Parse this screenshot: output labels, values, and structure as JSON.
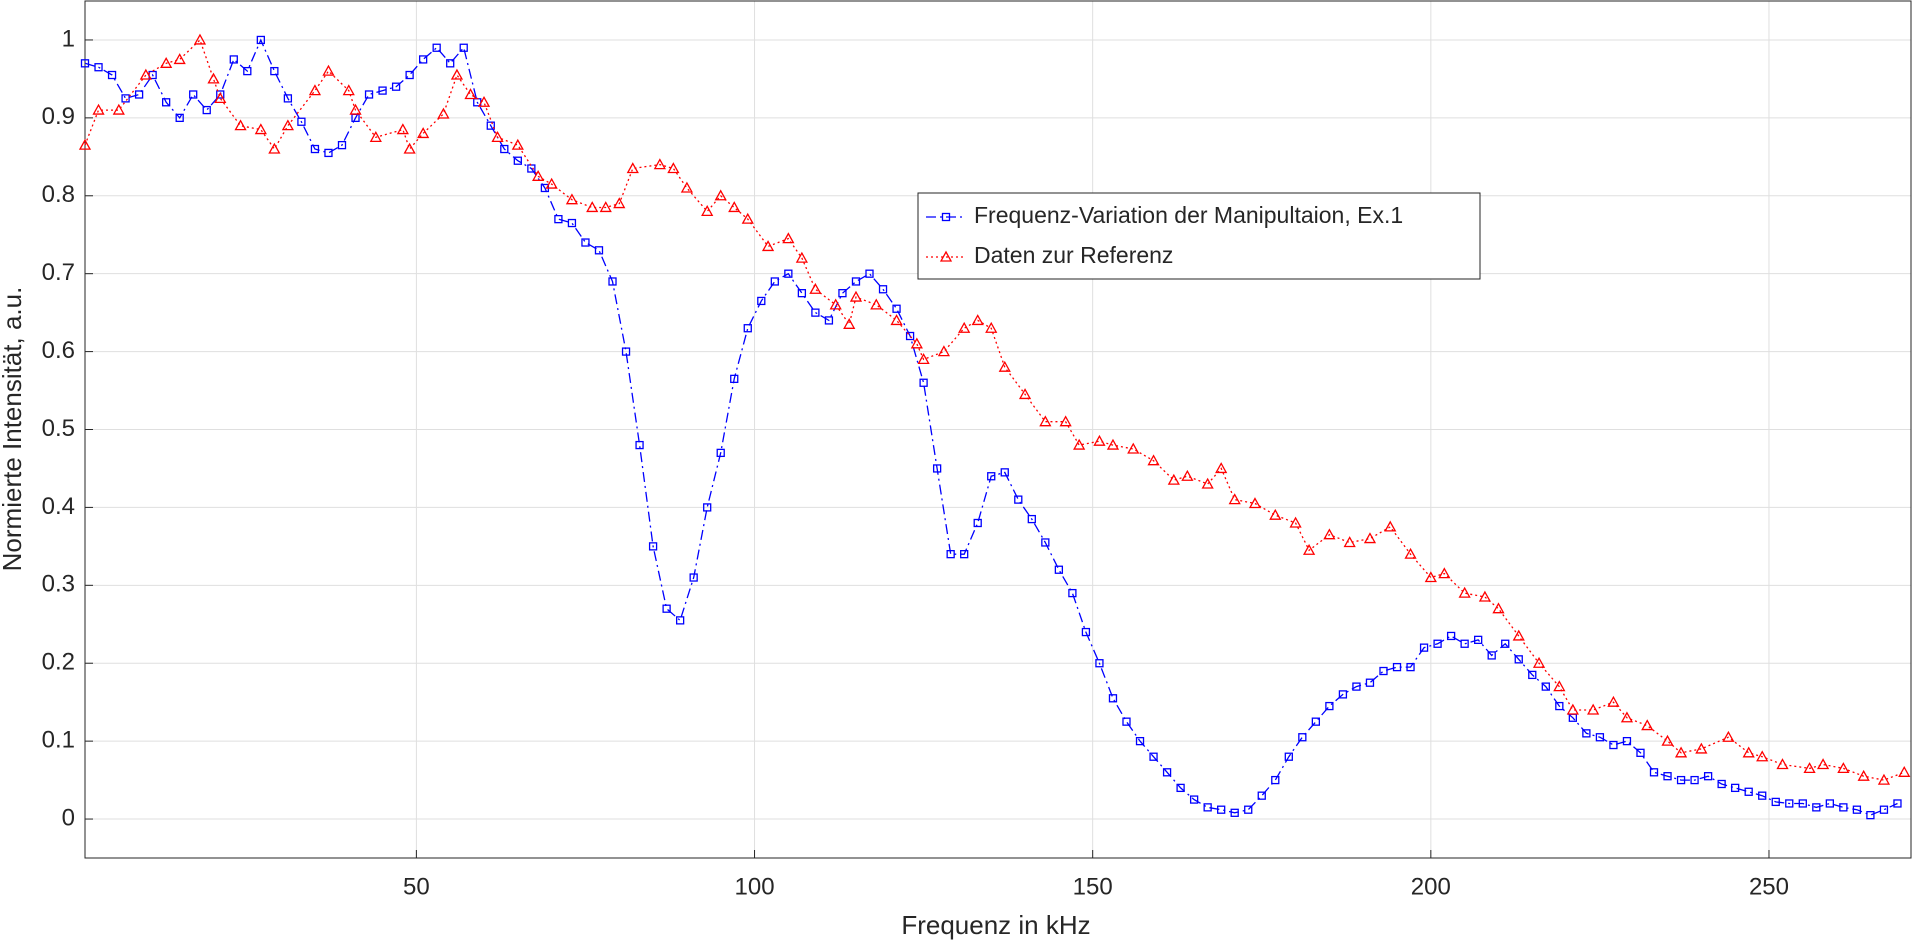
{
  "chart_data": {
    "type": "line",
    "xlabel": "Frequenz in kHz",
    "ylabel": "Normierte Intensität, a.u.",
    "xlim": [
      1,
      271
    ],
    "ylim": [
      -0.05,
      1.05
    ],
    "xticks": [
      50,
      100,
      150,
      200,
      250
    ],
    "yticks": [
      0,
      0.1,
      0.2,
      0.3,
      0.4,
      0.5,
      0.6,
      0.7,
      0.8,
      0.9,
      1
    ],
    "grid": true,
    "legend_loc": "upper center",
    "series": [
      {
        "name": "Frequenz-Variation der Manipultaion, Ex.1",
        "color": "#0000ff",
        "linestyle": "dashdot",
        "marker": "square",
        "x": [
          1,
          3,
          5,
          7,
          9,
          11,
          13,
          15,
          17,
          19,
          21,
          23,
          25,
          27,
          29,
          31,
          33,
          35,
          37,
          39,
          41,
          43,
          45,
          47,
          49,
          51,
          53,
          55,
          57,
          59,
          61,
          63,
          65,
          67,
          69,
          71,
          73,
          75,
          77,
          79,
          81,
          83,
          85,
          87,
          89,
          91,
          93,
          95,
          97,
          99,
          101,
          103,
          105,
          107,
          109,
          111,
          113,
          115,
          117,
          119,
          121,
          123,
          125,
          127,
          129,
          131,
          133,
          135,
          137,
          139,
          141,
          143,
          145,
          147,
          149,
          151,
          153,
          155,
          157,
          159,
          161,
          163,
          165,
          167,
          169,
          171,
          173,
          175,
          177,
          179,
          181,
          183,
          185,
          187,
          189,
          191,
          193,
          195,
          197,
          199,
          201,
          203,
          205,
          207,
          209,
          211,
          213,
          215,
          217,
          219,
          221,
          223,
          225,
          227,
          229,
          231,
          233,
          235,
          237,
          239,
          241,
          243,
          245,
          247,
          249,
          251,
          253,
          255,
          257,
          259,
          261,
          263,
          265,
          267,
          269
        ],
        "values": [
          0.97,
          0.965,
          0.955,
          0.925,
          0.93,
          0.955,
          0.92,
          0.9,
          0.93,
          0.91,
          0.93,
          0.975,
          0.96,
          1.0,
          0.96,
          0.925,
          0.895,
          0.86,
          0.855,
          0.865,
          0.9,
          0.93,
          0.935,
          0.94,
          0.955,
          0.975,
          0.99,
          0.97,
          0.99,
          0.92,
          0.89,
          0.86,
          0.845,
          0.835,
          0.81,
          0.77,
          0.765,
          0.74,
          0.73,
          0.69,
          0.6,
          0.48,
          0.35,
          0.27,
          0.255,
          0.31,
          0.4,
          0.47,
          0.565,
          0.63,
          0.665,
          0.69,
          0.7,
          0.675,
          0.65,
          0.64,
          0.675,
          0.69,
          0.7,
          0.68,
          0.655,
          0.62,
          0.56,
          0.45,
          0.34,
          0.34,
          0.38,
          0.44,
          0.445,
          0.41,
          0.385,
          0.355,
          0.32,
          0.29,
          0.24,
          0.2,
          0.155,
          0.125,
          0.1,
          0.08,
          0.06,
          0.04,
          0.025,
          0.015,
          0.012,
          0.008,
          0.012,
          0.03,
          0.05,
          0.08,
          0.105,
          0.125,
          0.145,
          0.16,
          0.17,
          0.175,
          0.19,
          0.195,
          0.195,
          0.22,
          0.225,
          0.235,
          0.225,
          0.23,
          0.21,
          0.225,
          0.205,
          0.185,
          0.17,
          0.145,
          0.13,
          0.11,
          0.105,
          0.095,
          0.1,
          0.085,
          0.06,
          0.055,
          0.05,
          0.05,
          0.055,
          0.045,
          0.04,
          0.035,
          0.03,
          0.022,
          0.02,
          0.02,
          0.015,
          0.02,
          0.015,
          0.012,
          0.005,
          0.012,
          0.02
        ]
      },
      {
        "name": "Daten zur Referenz",
        "color": "#ff0000",
        "linestyle": "dotted",
        "marker": "triangle",
        "x": [
          1,
          3,
          6,
          10,
          13,
          15,
          18,
          20,
          21,
          24,
          27,
          29,
          31,
          35,
          37,
          40,
          41,
          44,
          48,
          49,
          51,
          54,
          56,
          58,
          60,
          62,
          65,
          68,
          70,
          73,
          76,
          78,
          80,
          82,
          86,
          88,
          90,
          93,
          95,
          97,
          99,
          102,
          105,
          107,
          109,
          112,
          114,
          115,
          118,
          121,
          124,
          125,
          128,
          131,
          133,
          135,
          137,
          140,
          143,
          146,
          148,
          151,
          153,
          156,
          159,
          162,
          164,
          167,
          169,
          171,
          174,
          177,
          180,
          182,
          185,
          188,
          191,
          194,
          197,
          200,
          202,
          205,
          208,
          210,
          213,
          216,
          219,
          221,
          224,
          227,
          229,
          232,
          235,
          237,
          240,
          244,
          247,
          249,
          252,
          256,
          258,
          261,
          264,
          267,
          270
        ],
        "values": [
          0.865,
          0.91,
          0.91,
          0.955,
          0.97,
          0.975,
          1.0,
          0.95,
          0.925,
          0.89,
          0.885,
          0.86,
          0.89,
          0.935,
          0.96,
          0.935,
          0.91,
          0.875,
          0.885,
          0.86,
          0.88,
          0.905,
          0.955,
          0.93,
          0.92,
          0.875,
          0.865,
          0.825,
          0.815,
          0.795,
          0.785,
          0.785,
          0.79,
          0.835,
          0.84,
          0.835,
          0.81,
          0.78,
          0.8,
          0.785,
          0.77,
          0.735,
          0.745,
          0.72,
          0.68,
          0.66,
          0.635,
          0.67,
          0.66,
          0.64,
          0.61,
          0.59,
          0.6,
          0.63,
          0.64,
          0.63,
          0.58,
          0.545,
          0.51,
          0.51,
          0.48,
          0.485,
          0.48,
          0.475,
          0.46,
          0.435,
          0.44,
          0.43,
          0.45,
          0.41,
          0.405,
          0.39,
          0.38,
          0.345,
          0.365,
          0.355,
          0.36,
          0.375,
          0.34,
          0.31,
          0.315,
          0.29,
          0.285,
          0.27,
          0.235,
          0.2,
          0.17,
          0.14,
          0.14,
          0.15,
          0.13,
          0.12,
          0.1,
          0.085,
          0.09,
          0.105,
          0.085,
          0.08,
          0.07,
          0.065,
          0.07,
          0.065,
          0.055,
          0.05,
          0.06
        ]
      }
    ]
  }
}
